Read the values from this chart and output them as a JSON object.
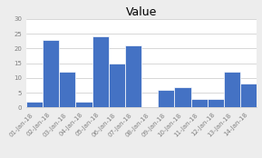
{
  "categories": [
    "01-Jan-18",
    "02-Jan-18",
    "03-Jan-18",
    "04-Jan-18",
    "05-Jan-18",
    "06-Jan-18",
    "07-Jan-18",
    "08-Jan-18",
    "09-Jan-18",
    "10-Jan-18",
    "11-Jan-18",
    "12-Jan-18",
    "13-Jan-18",
    "14-Jan-18"
  ],
  "values": [
    2,
    23,
    12,
    2,
    24,
    15,
    21,
    0,
    6,
    7,
    3,
    3,
    12,
    8
  ],
  "bar_color": "#4472C4",
  "bar_edgecolor": "#FFFFFF",
  "title": "Value",
  "title_fontsize": 9,
  "ylim": [
    0,
    30
  ],
  "yticks": [
    0,
    5,
    10,
    15,
    20,
    25,
    30
  ],
  "background_color": "#EDEDED",
  "plot_bg_color": "#FFFFFF",
  "grid_color": "#C8C8C8",
  "tick_label_fontsize": 5.0,
  "axis_label_color": "#808080",
  "ylabel_fontsize": 6
}
